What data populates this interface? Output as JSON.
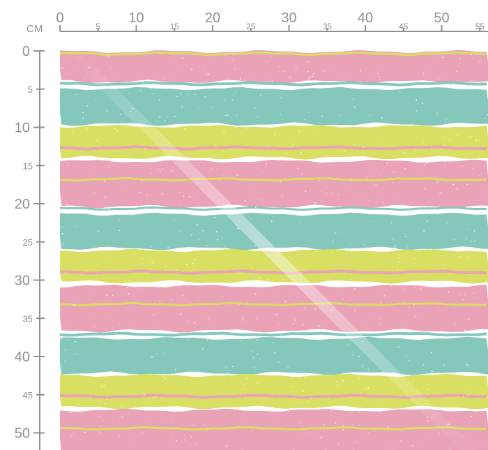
{
  "ruler": {
    "unit": "CM",
    "top_major_labels": [
      "0",
      "10",
      "20",
      "30",
      "40",
      "50"
    ],
    "top_minor_labels": [
      "5",
      "15",
      "25",
      "35",
      "45",
      "55"
    ],
    "left_major_labels": [
      "0",
      "10",
      "20",
      "30",
      "40",
      "50"
    ],
    "left_minor_labels": [
      "5",
      "15",
      "25",
      "35",
      "45"
    ],
    "ruler_color": "#8a9196"
  },
  "fabric": {
    "pattern": "horizontal-stripes",
    "colors": {
      "pink": "#e9a2b6",
      "teal": "#86c7bc",
      "yellow": "#d9df62",
      "white": "#ffffff"
    },
    "stripe_sequence": [
      "pink",
      "teal",
      "yellow",
      "pink",
      "teal",
      "yellow",
      "pink",
      "teal",
      "yellow",
      "pink"
    ]
  }
}
